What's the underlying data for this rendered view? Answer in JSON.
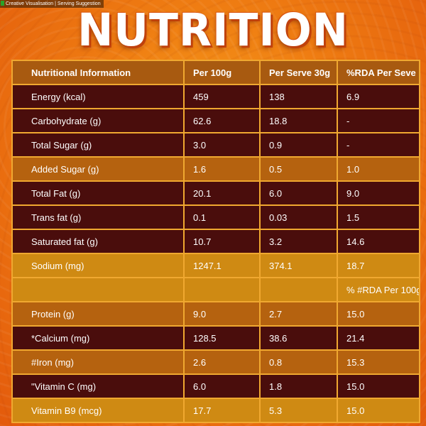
{
  "top_note": "Creative Visualisation | Serving Suggestion",
  "title": "NUTRITION",
  "table": {
    "headers": [
      "Nutritional Information",
      "Per 100g",
      "Per Serve 30g",
      "%RDA Per Seve"
    ],
    "rows": [
      [
        "Energy (kcal)",
        "459",
        "138",
        "6.9"
      ],
      [
        "Carbohydrate (g)",
        "62.6",
        "18.8",
        "-"
      ],
      [
        "Total Sugar (g)",
        "3.0",
        "0.9",
        "-"
      ],
      [
        "Added Sugar (g)",
        "1.6",
        "0.5",
        "1.0"
      ],
      [
        "Total Fat (g)",
        "20.1",
        "6.0",
        "9.0"
      ],
      [
        "Trans fat (g)",
        "0.1",
        "0.03",
        "1.5"
      ],
      [
        "Saturated fat (g)",
        "10.7",
        "3.2",
        "14.6"
      ],
      [
        "Sodium (mg)",
        "1247.1",
        "374.1",
        "18.7"
      ],
      [
        "",
        "",
        "",
        "% #RDA Per 100g"
      ],
      [
        "Protein (g)",
        "9.0",
        "2.7",
        "15.0"
      ],
      [
        "*Calcium (mg)",
        "128.5",
        "38.6",
        "21.4"
      ],
      [
        "#Iron (mg)",
        "2.6",
        "0.8",
        "15.3"
      ],
      [
        "\"Vitamin C (mg)",
        "6.0",
        "1.8",
        "15.0"
      ],
      [
        "Vitamin B9 (mcg)",
        "17.7",
        "5.3",
        "15.0"
      ]
    ]
  },
  "colors": {
    "background": "#ef7d12",
    "row_dark": "#4a0d0c",
    "row_light": "#b5620f",
    "border": "#f0a830",
    "title": "#ffffff"
  }
}
